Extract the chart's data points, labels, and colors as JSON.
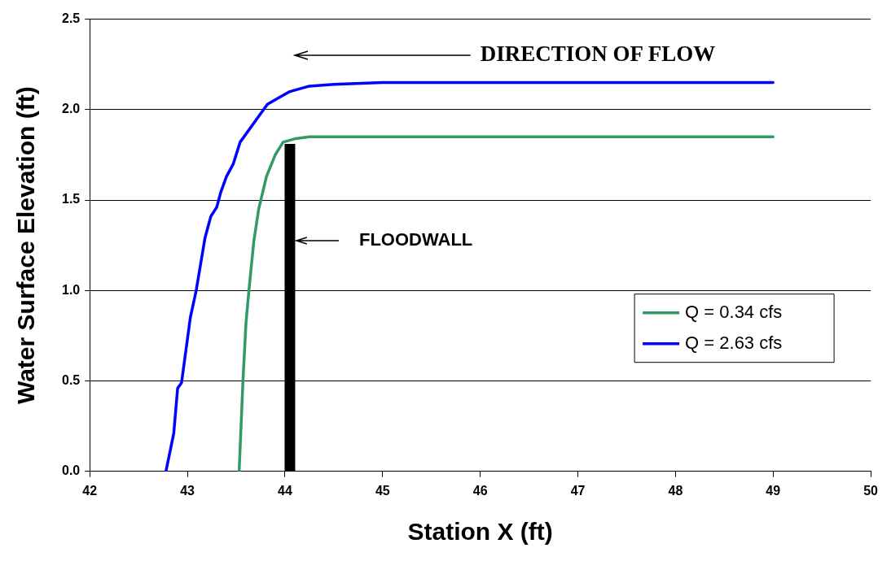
{
  "chart_data": {
    "type": "line",
    "xlabel": "Station X (ft)",
    "ylabel": "Water Surface Elevation (ft)",
    "xlim": [
      42,
      50
    ],
    "xticks": [
      42,
      43,
      44,
      45,
      46,
      47,
      48,
      49,
      50
    ],
    "ylim": [
      0,
      2.5
    ],
    "yticks": [
      {
        "value": 0,
        "label": "0.0"
      },
      {
        "value": 0.5,
        "label": "0.5"
      },
      {
        "value": 1,
        "label": "1.0"
      },
      {
        "value": 1.5,
        "label": "1.5"
      },
      {
        "value": 2,
        "label": "2.0"
      },
      {
        "value": 2.5,
        "label": "2.5"
      }
    ],
    "grid": "y",
    "legend": "right",
    "marker": "none",
    "line_style": "solid",
    "series": [
      {
        "name": "Q = 0.34 cfs",
        "color": "#339966",
        "x": [
          43.53,
          43.57,
          43.6,
          43.63,
          43.68,
          43.73,
          43.81,
          43.9,
          43.98,
          44.11,
          44.25,
          49
        ],
        "values": [
          0,
          0.51,
          0.82,
          1.0,
          1.27,
          1.45,
          1.63,
          1.75,
          1.82,
          1.84,
          1.85,
          1.85
        ]
      },
      {
        "name": "Q = 2.63 cfs",
        "color": "#0000ff",
        "x": [
          42.78,
          42.86,
          42.9,
          42.94,
          42.99,
          43.03,
          43.09,
          43.18,
          43.24,
          43.3,
          43.34,
          43.4,
          43.47,
          43.54,
          43.74,
          43.82,
          43.95,
          44.05,
          44.25,
          44.5,
          45,
          49
        ],
        "values": [
          0,
          0.21,
          0.46,
          0.49,
          0.69,
          0.85,
          1.0,
          1.29,
          1.41,
          1.46,
          1.54,
          1.63,
          1.7,
          1.82,
          1.97,
          2.03,
          2.07,
          2.1,
          2.13,
          2.14,
          2.15,
          2.15
        ]
      },
      {
        "type": "line",
        "color": "#000000",
        "x": [
          44.05,
          44.05
        ],
        "values": [
          0,
          1.81
        ]
      }
    ],
    "annotations": [
      "DIRECTION OF FLOW",
      "FLOODWALL"
    ]
  }
}
